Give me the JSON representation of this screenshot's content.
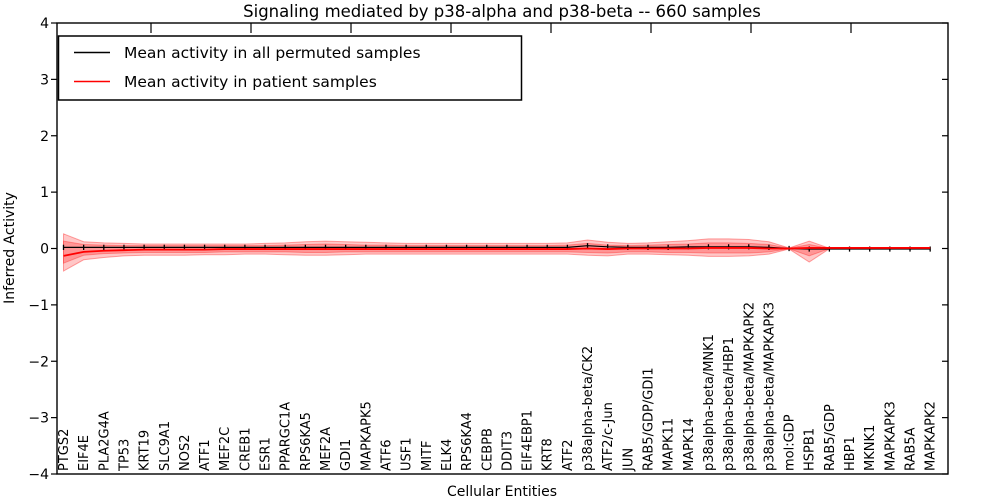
{
  "chart_data": {
    "type": "line",
    "title": "Signaling mediated by p38-alpha and p38-beta -- 660 samples",
    "xlabel": "Cellular Entities",
    "ylabel": "Inferred Activity",
    "ylim": [
      -4,
      4
    ],
    "ytick_labels": [
      "4",
      "3",
      "2",
      "1",
      "0",
      "−1",
      "−2",
      "−3",
      "−4"
    ],
    "ytick_values": [
      4,
      3,
      2,
      1,
      0,
      -1,
      -2,
      -3,
      -4
    ],
    "grid": false,
    "legend_position": "upper left",
    "legend": [
      {
        "label": "Mean activity in all permuted samples",
        "color": "#000000"
      },
      {
        "label": "Mean activity in patient samples",
        "color": "#ff0000"
      }
    ],
    "colors": {
      "permuted_line": "#000000",
      "patient_line": "#ff0000",
      "band_fill": "#ff0000",
      "band_opacity": 0.22
    },
    "categories": [
      "PTGS2",
      "EIF4E",
      "PLA2G4A",
      "TP53",
      "KRT19",
      "SLC9A1",
      "NOS2",
      "ATF1",
      "MEF2C",
      "CREB1",
      "ESR1",
      "PPARGC1A",
      "RPS6KA5",
      "MEF2A",
      "GDI1",
      "MAPKAPK5",
      "ATF6",
      "USF1",
      "MITF",
      "ELK4",
      "RPS6KA4",
      "CEBPB",
      "DDIT3",
      "EIF4EBP1",
      "KRT8",
      "ATF2",
      "p38alpha-beta/CK2",
      "ATF2/c-Jun",
      "JUN",
      "RAB5/GDP/GDI1",
      "MAPK11",
      "MAPK14",
      "p38alpha-beta/MNK1",
      "p38alpha-beta/HBP1",
      "p38alpha-beta/MAPKAPK2",
      "p38alpha-beta/MAPKAPK3",
      "mol:GDP",
      "HSPB1",
      "RAB5/GDP",
      "HBP1",
      "MKNK1",
      "MAPKAPK3",
      "RAB5A",
      "MAPKAPK2"
    ],
    "series": [
      {
        "name": "Mean activity in all permuted samples",
        "values": [
          0.02,
          0.02,
          0.02,
          0.02,
          0.02,
          0.02,
          0.02,
          0.02,
          0.02,
          0.02,
          0.02,
          0.02,
          0.02,
          0.02,
          0.02,
          0.02,
          0.02,
          0.02,
          0.02,
          0.02,
          0.02,
          0.02,
          0.02,
          0.02,
          0.02,
          0.02,
          0.05,
          0.03,
          0.02,
          0.02,
          0.02,
          0.03,
          0.03,
          0.03,
          0.03,
          0.02,
          0.0,
          -0.01,
          -0.01,
          -0.01,
          -0.01,
          -0.01,
          -0.01,
          -0.01
        ]
      },
      {
        "name": "Mean activity in patient samples",
        "values": [
          -0.13,
          -0.06,
          -0.04,
          -0.03,
          -0.02,
          -0.02,
          -0.02,
          -0.02,
          -0.01,
          -0.01,
          -0.01,
          -0.01,
          -0.01,
          -0.01,
          -0.01,
          -0.01,
          -0.01,
          -0.01,
          -0.01,
          -0.01,
          -0.01,
          -0.01,
          -0.01,
          -0.01,
          -0.01,
          -0.01,
          0.0,
          -0.01,
          0.0,
          0.0,
          0.0,
          0.0,
          0.01,
          0.01,
          0.01,
          0.0,
          0.0,
          0.01,
          0.01,
          0.01,
          0.01,
          0.01,
          0.01,
          0.01
        ]
      }
    ],
    "band_outer_upper": [
      0.26,
      0.12,
      0.1,
      0.09,
      0.08,
      0.08,
      0.08,
      0.08,
      0.08,
      0.08,
      0.09,
      0.1,
      0.12,
      0.13,
      0.12,
      0.11,
      0.1,
      0.09,
      0.09,
      0.09,
      0.09,
      0.09,
      0.09,
      0.09,
      0.09,
      0.1,
      0.15,
      0.11,
      0.09,
      0.1,
      0.12,
      0.14,
      0.17,
      0.17,
      0.16,
      0.12,
      0.01,
      0.13,
      0.005,
      0.005,
      0.005,
      0.005,
      0.005,
      0.005
    ],
    "band_outer_lower": [
      -0.4,
      -0.2,
      -0.16,
      -0.13,
      -0.12,
      -0.12,
      -0.12,
      -0.11,
      -0.11,
      -0.1,
      -0.1,
      -0.11,
      -0.12,
      -0.12,
      -0.11,
      -0.1,
      -0.1,
      -0.1,
      -0.1,
      -0.1,
      -0.1,
      -0.1,
      -0.1,
      -0.1,
      -0.1,
      -0.1,
      -0.12,
      -0.13,
      -0.1,
      -0.1,
      -0.11,
      -0.12,
      -0.14,
      -0.14,
      -0.13,
      -0.1,
      -0.01,
      -0.24,
      -0.005,
      -0.005,
      -0.005,
      -0.005,
      -0.005,
      -0.005
    ],
    "band_inner_upper": [
      0.13,
      0.07,
      0.06,
      0.05,
      0.05,
      0.05,
      0.05,
      0.05,
      0.05,
      0.05,
      0.05,
      0.06,
      0.07,
      0.08,
      0.07,
      0.06,
      0.06,
      0.05,
      0.05,
      0.05,
      0.05,
      0.05,
      0.05,
      0.05,
      0.05,
      0.06,
      0.09,
      0.06,
      0.05,
      0.06,
      0.07,
      0.08,
      0.1,
      0.1,
      0.09,
      0.07,
      0.005,
      0.07,
      0.003,
      0.003,
      0.003,
      0.003,
      0.003,
      0.003
    ],
    "band_inner_lower": [
      -0.26,
      -0.12,
      -0.09,
      -0.08,
      -0.07,
      -0.07,
      -0.07,
      -0.07,
      -0.06,
      -0.06,
      -0.06,
      -0.06,
      -0.07,
      -0.07,
      -0.06,
      -0.06,
      -0.06,
      -0.06,
      -0.06,
      -0.06,
      -0.06,
      -0.06,
      -0.06,
      -0.06,
      -0.06,
      -0.06,
      -0.07,
      -0.08,
      -0.06,
      -0.06,
      -0.07,
      -0.07,
      -0.08,
      -0.08,
      -0.08,
      -0.06,
      -0.005,
      -0.13,
      -0.003,
      -0.003,
      -0.003,
      -0.003,
      -0.003,
      -0.003
    ]
  }
}
